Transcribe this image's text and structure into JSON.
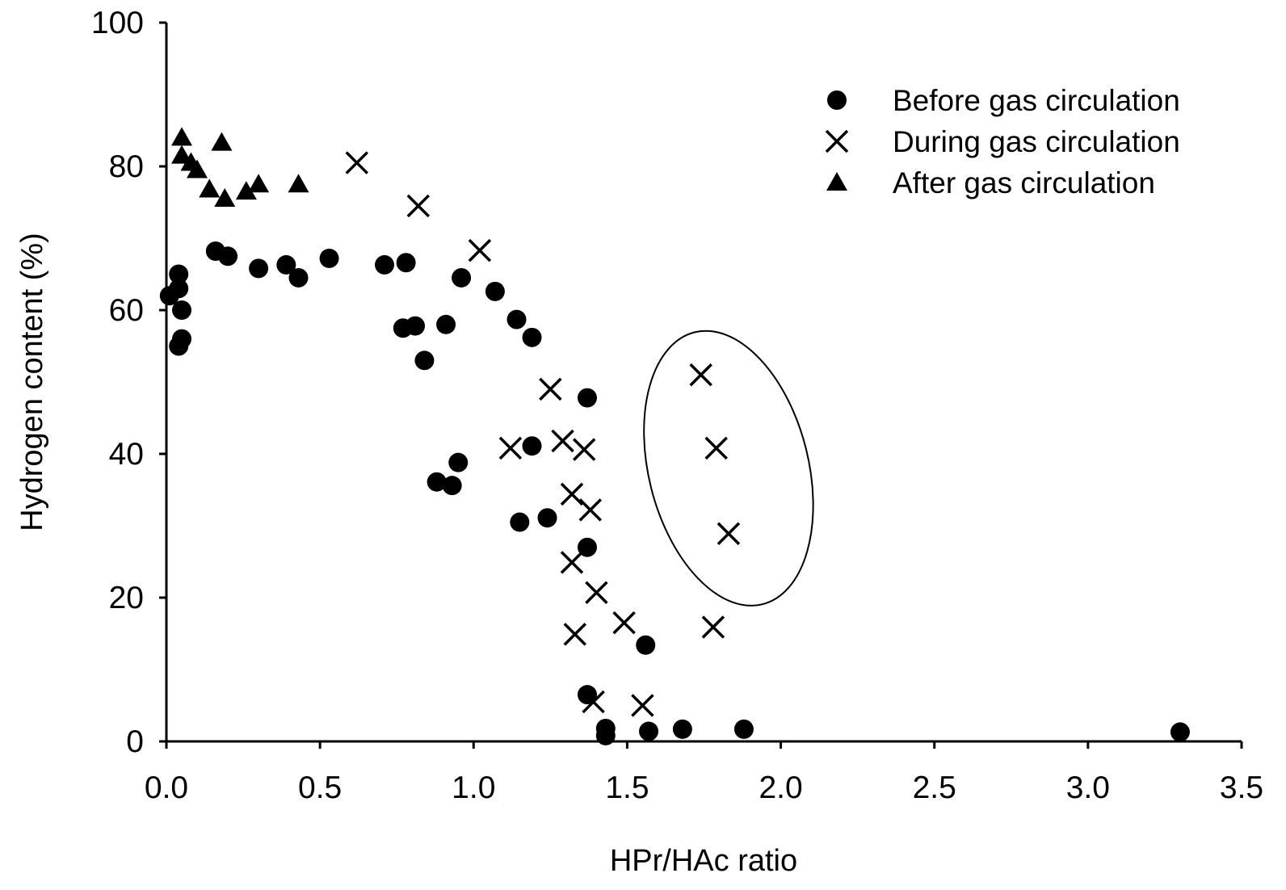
{
  "chart_data": {
    "type": "scatter",
    "xlabel": "HPr/HAc ratio",
    "ylabel": "Hydrogen content (%)",
    "xlim": [
      0,
      3.5
    ],
    "ylim": [
      0,
      100
    ],
    "x_ticks": [
      "0.0",
      "0.5",
      "1.0",
      "1.5",
      "2.0",
      "2.5",
      "3.0",
      "3.5"
    ],
    "y_ticks": [
      "0",
      "20",
      "40",
      "60",
      "80",
      "100"
    ],
    "grid": false,
    "legend_position": "top-right",
    "series": [
      {
        "name": "Before gas circulation",
        "marker": "circle",
        "color": "#000000",
        "points": [
          [
            0.01,
            62.0
          ],
          [
            0.04,
            65.0
          ],
          [
            0.04,
            63.0
          ],
          [
            0.05,
            60.0
          ],
          [
            0.05,
            56.0
          ],
          [
            0.04,
            55.0
          ],
          [
            0.16,
            68.2
          ],
          [
            0.2,
            67.5
          ],
          [
            0.3,
            65.8
          ],
          [
            0.39,
            66.3
          ],
          [
            0.43,
            64.5
          ],
          [
            0.53,
            67.2
          ],
          [
            0.71,
            66.3
          ],
          [
            0.78,
            66.6
          ],
          [
            0.77,
            57.5
          ],
          [
            0.81,
            57.8
          ],
          [
            0.84,
            53.0
          ],
          [
            0.91,
            58.0
          ],
          [
            0.96,
            64.5
          ],
          [
            1.07,
            62.6
          ],
          [
            1.14,
            58.7
          ],
          [
            1.19,
            56.2
          ],
          [
            0.88,
            36.1
          ],
          [
            0.93,
            35.6
          ],
          [
            0.95,
            38.8
          ],
          [
            1.19,
            41.1
          ],
          [
            1.15,
            30.5
          ],
          [
            1.24,
            31.1
          ],
          [
            1.37,
            47.8
          ],
          [
            1.37,
            27.0
          ],
          [
            1.37,
            6.5
          ],
          [
            1.43,
            1.8
          ],
          [
            1.43,
            0.8
          ],
          [
            1.56,
            13.4
          ],
          [
            1.57,
            1.4
          ],
          [
            1.68,
            1.7
          ],
          [
            1.88,
            1.7
          ],
          [
            3.3,
            1.3
          ]
        ]
      },
      {
        "name": "During gas circulation",
        "marker": "cross",
        "color": "#000000",
        "points": [
          [
            0.62,
            80.5
          ],
          [
            0.82,
            74.5
          ],
          [
            1.02,
            68.3
          ],
          [
            1.25,
            49.0
          ],
          [
            1.12,
            40.8
          ],
          [
            1.29,
            41.8
          ],
          [
            1.36,
            40.6
          ],
          [
            1.32,
            34.4
          ],
          [
            1.38,
            32.2
          ],
          [
            1.32,
            24.9
          ],
          [
            1.4,
            20.7
          ],
          [
            1.33,
            14.9
          ],
          [
            1.49,
            16.5
          ],
          [
            1.39,
            5.5
          ],
          [
            1.55,
            5.0
          ],
          [
            1.74,
            51.0
          ],
          [
            1.79,
            40.8
          ],
          [
            1.83,
            28.9
          ],
          [
            1.78,
            15.9
          ]
        ]
      },
      {
        "name": "After gas circulation",
        "marker": "triangle",
        "color": "#000000",
        "points": [
          [
            0.05,
            84.0
          ],
          [
            0.05,
            81.5
          ],
          [
            0.08,
            80.5
          ],
          [
            0.1,
            79.5
          ],
          [
            0.14,
            76.8
          ],
          [
            0.18,
            83.3
          ],
          [
            0.19,
            75.5
          ],
          [
            0.26,
            76.5
          ],
          [
            0.3,
            77.5
          ],
          [
            0.43,
            77.5
          ]
        ]
      }
    ],
    "annotations": [
      {
        "type": "ellipse",
        "center": [
          1.83,
          38.0
        ],
        "x_radius": 0.26,
        "y_radius": 19.5,
        "rotation_deg": -14
      }
    ]
  }
}
